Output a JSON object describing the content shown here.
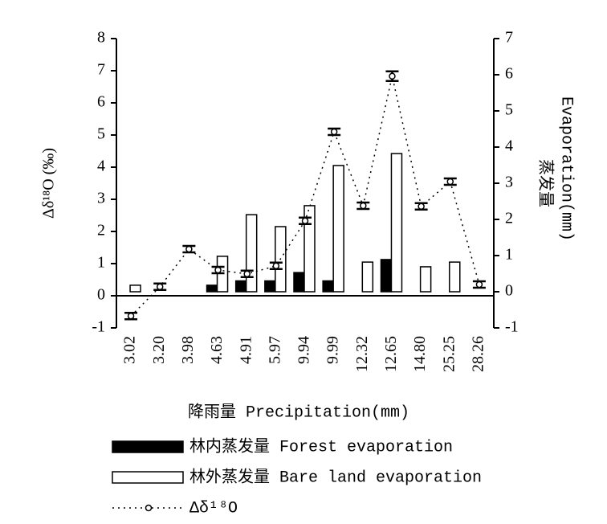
{
  "chart_data": {
    "type": "bar",
    "categories": [
      "3.02",
      "3.20",
      "3.98",
      "4.63",
      "4.91",
      "5.97",
      "9.94",
      "9.99",
      "12.32",
      "12.65",
      "14.80",
      "25.25",
      "28.26"
    ],
    "xlabel": "降雨量 Precipitation(mm)",
    "ylabel": "Δδ¹⁸O (‰)",
    "y2label": [
      "蒸发量",
      "Evaporation(mm)"
    ],
    "ylim": [
      -1,
      8
    ],
    "yticks": [
      -1,
      0,
      1,
      2,
      3,
      4,
      5,
      6,
      7,
      8
    ],
    "y2lim": [
      -1,
      7
    ],
    "y2ticks": [
      -1,
      0,
      1,
      2,
      3,
      4,
      5,
      6,
      7
    ],
    "series": [
      {
        "name": "林内蒸发量 Forest evaporation",
        "color": "#000000",
        "axis": "y2",
        "values": [
          0,
          0,
          0,
          0.18,
          0.3,
          0.3,
          0.53,
          0.3,
          0,
          0.89,
          0,
          0,
          0
        ]
      },
      {
        "name": "林外蒸发量 Bare land evaporation",
        "color": "#ffffff",
        "axis": "y2",
        "values": [
          0.18,
          0,
          0,
          0.98,
          2.13,
          1.8,
          2.38,
          3.49,
          0.82,
          3.82,
          0.69,
          0.82,
          0
        ]
      },
      {
        "name": "Δδ¹⁸O",
        "color": "#000000",
        "type": "line",
        "values": [
          -0.63,
          0.28,
          1.45,
          0.8,
          0.68,
          0.93,
          2.33,
          5.1,
          2.8,
          6.83,
          2.78,
          3.55,
          0.35
        ],
        "errors": [
          0.1,
          0.1,
          0.1,
          0.1,
          0.1,
          0.1,
          0.1,
          0.1,
          0.1,
          0.15,
          0.1,
          0.1,
          0.1
        ]
      }
    ]
  }
}
